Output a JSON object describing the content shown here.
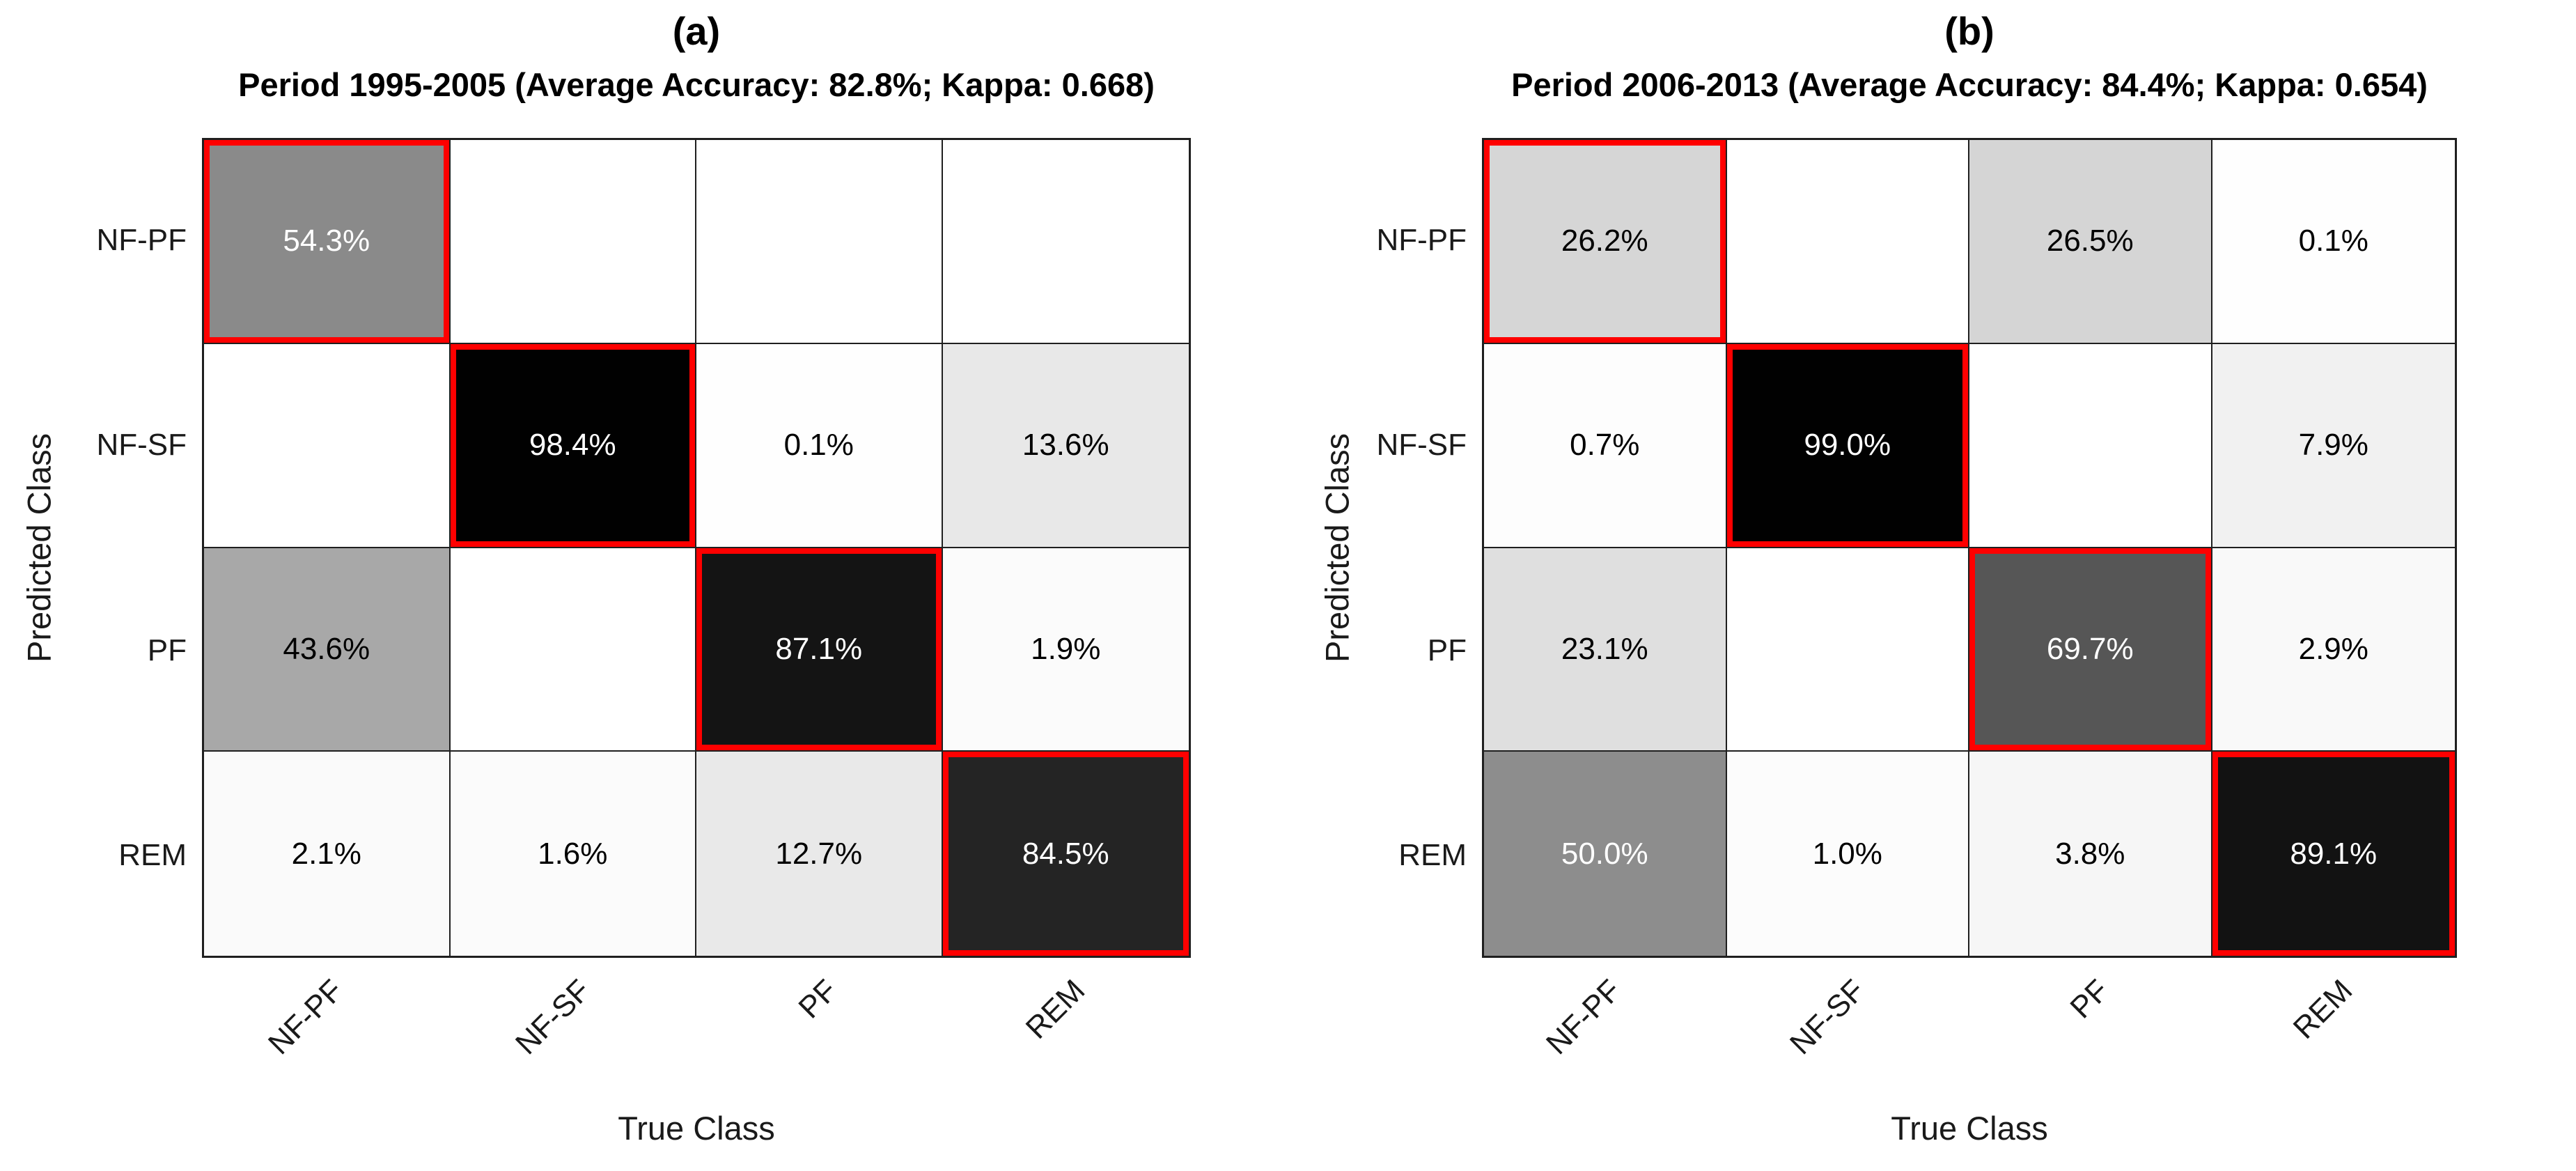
{
  "accent_red": "#ff0000",
  "grid_line_color": "#1f1f1f",
  "chart_data": [
    {
      "type": "heatmap",
      "panel_label": "(a)",
      "title": "Period 1995-2005 (Average Accuracy: 82.8%; Kappa: 0.668)",
      "period": "1995-2005",
      "average_accuracy_pct": 82.8,
      "kappa": 0.668,
      "xlabel": "True Class",
      "ylabel": "Predicted Class",
      "x_categories": [
        "NF-PF",
        "NF-SF",
        "PF",
        "REM"
      ],
      "y_categories": [
        "NF-PF",
        "NF-SF",
        "PF",
        "REM"
      ],
      "values_percent": [
        [
          54.3,
          null,
          null,
          null
        ],
        [
          null,
          98.4,
          0.1,
          13.6
        ],
        [
          43.6,
          null,
          87.1,
          1.9
        ],
        [
          2.1,
          1.6,
          12.7,
          84.5
        ]
      ],
      "diagonal_highlight_color": "#ff0000",
      "legend": "none",
      "grid": true,
      "rows": [
        [
          {
            "label": "54.3%",
            "bg": "#8a8a8a",
            "fg": "#ffffff",
            "diagonal": true
          },
          {
            "label": "",
            "bg": "#ffffff",
            "fg": "#000000",
            "diagonal": false
          },
          {
            "label": "",
            "bg": "#ffffff",
            "fg": "#000000",
            "diagonal": false
          },
          {
            "label": "",
            "bg": "#ffffff",
            "fg": "#000000",
            "diagonal": false
          }
        ],
        [
          {
            "label": "",
            "bg": "#ffffff",
            "fg": "#000000",
            "diagonal": false
          },
          {
            "label": "98.4%",
            "bg": "#010101",
            "fg": "#ffffff",
            "diagonal": true
          },
          {
            "label": "0.1%",
            "bg": "#fefefe",
            "fg": "#000000",
            "diagonal": false
          },
          {
            "label": "13.6%",
            "bg": "#e8e8e8",
            "fg": "#000000",
            "diagonal": false
          }
        ],
        [
          {
            "label": "43.6%",
            "bg": "#a8a8a8",
            "fg": "#000000",
            "diagonal": false
          },
          {
            "label": "",
            "bg": "#ffffff",
            "fg": "#000000",
            "diagonal": false
          },
          {
            "label": "87.1%",
            "bg": "#141414",
            "fg": "#ffffff",
            "diagonal": true
          },
          {
            "label": "1.9%",
            "bg": "#fbfbfb",
            "fg": "#000000",
            "diagonal": false
          }
        ],
        [
          {
            "label": "2.1%",
            "bg": "#fafafa",
            "fg": "#000000",
            "diagonal": false
          },
          {
            "label": "1.6%",
            "bg": "#fbfbfb",
            "fg": "#000000",
            "diagonal": false
          },
          {
            "label": "12.7%",
            "bg": "#e9e9e9",
            "fg": "#000000",
            "diagonal": false
          },
          {
            "label": "84.5%",
            "bg": "#242424",
            "fg": "#ffffff",
            "diagonal": true
          }
        ]
      ]
    },
    {
      "type": "heatmap",
      "panel_label": "(b)",
      "title": "Period 2006-2013 (Average Accuracy: 84.4%; Kappa: 0.654)",
      "period": "2006-2013",
      "average_accuracy_pct": 84.4,
      "kappa": 0.654,
      "xlabel": "True Class",
      "ylabel": "Predicted Class",
      "x_categories": [
        "NF-PF",
        "NF-SF",
        "PF",
        "REM"
      ],
      "y_categories": [
        "NF-PF",
        "NF-SF",
        "PF",
        "REM"
      ],
      "values_percent": [
        [
          26.2,
          null,
          26.5,
          0.1
        ],
        [
          0.7,
          99.0,
          null,
          7.9
        ],
        [
          23.1,
          null,
          69.7,
          2.9
        ],
        [
          50.0,
          1.0,
          3.8,
          89.1
        ]
      ],
      "diagonal_highlight_color": "#ff0000",
      "legend": "none",
      "grid": true,
      "rows": [
        [
          {
            "label": "26.2%",
            "bg": "#d6d6d6",
            "fg": "#000000",
            "diagonal": true
          },
          {
            "label": "",
            "bg": "#ffffff",
            "fg": "#000000",
            "diagonal": false
          },
          {
            "label": "26.5%",
            "bg": "#d5d5d5",
            "fg": "#000000",
            "diagonal": false
          },
          {
            "label": "0.1%",
            "bg": "#fefefe",
            "fg": "#000000",
            "diagonal": false
          }
        ],
        [
          {
            "label": "0.7%",
            "bg": "#fdfdfd",
            "fg": "#000000",
            "diagonal": false
          },
          {
            "label": "99.0%",
            "bg": "#010101",
            "fg": "#ffffff",
            "diagonal": true
          },
          {
            "label": "",
            "bg": "#ffffff",
            "fg": "#000000",
            "diagonal": false
          },
          {
            "label": "7.9%",
            "bg": "#f1f1f1",
            "fg": "#000000",
            "diagonal": false
          }
        ],
        [
          {
            "label": "23.1%",
            "bg": "#dfdfdf",
            "fg": "#000000",
            "diagonal": false
          },
          {
            "label": "",
            "bg": "#ffffff",
            "fg": "#000000",
            "diagonal": false
          },
          {
            "label": "69.7%",
            "bg": "#565656",
            "fg": "#ffffff",
            "diagonal": true
          },
          {
            "label": "2.9%",
            "bg": "#f9f9f9",
            "fg": "#000000",
            "diagonal": false
          }
        ],
        [
          {
            "label": "50.0%",
            "bg": "#8d8d8d",
            "fg": "#ffffff",
            "diagonal": false
          },
          {
            "label": "1.0%",
            "bg": "#fcfcfc",
            "fg": "#000000",
            "diagonal": false
          },
          {
            "label": "3.8%",
            "bg": "#f6f6f6",
            "fg": "#000000",
            "diagonal": false
          },
          {
            "label": "89.1%",
            "bg": "#121212",
            "fg": "#ffffff",
            "diagonal": true
          }
        ]
      ]
    }
  ]
}
